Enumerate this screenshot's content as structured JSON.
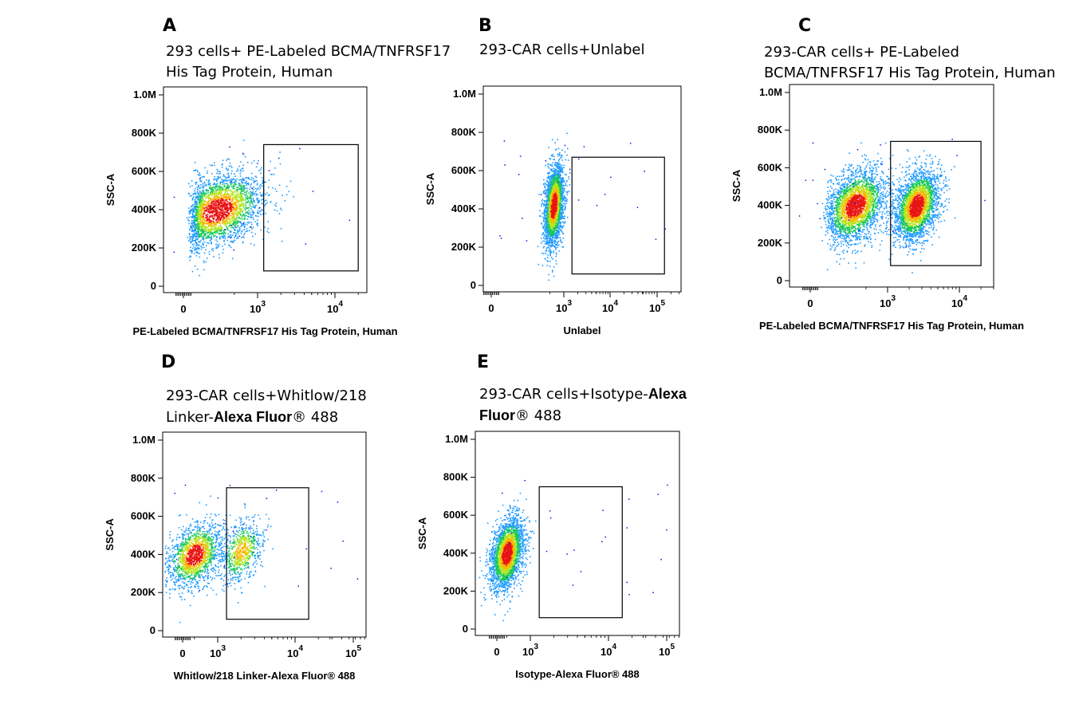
{
  "panels": [
    {
      "letter": "A",
      "title_lines": [
        [
          {
            "text": "293 cells+ PE-Labeled BCMA/TNFRSF17",
            "bold": false
          }
        ],
        [
          {
            "text": "His Tag Protein, Human",
            "bold": false
          }
        ]
      ]
    },
    {
      "letter": "B",
      "title_lines": [
        [
          {
            "text": "293-CAR cells+Unlabel",
            "bold": false
          }
        ]
      ]
    },
    {
      "letter": "C",
      "title_lines": [
        [
          {
            "text": "293-CAR cells+ PE-Labeled",
            "bold": false
          }
        ],
        [
          {
            "text": "BCMA/TNFRSF17 His Tag Protein, Human",
            "bold": false
          }
        ]
      ]
    },
    {
      "letter": "D",
      "title_lines": [
        [
          {
            "text": "293-CAR  cells+Whitlow/218",
            "bold": false
          }
        ],
        [
          {
            "text": "Linker-",
            "bold": false
          },
          {
            "text": "Alexa Fluor",
            "bold": true
          },
          {
            "text": "® 488",
            "bold": false
          }
        ]
      ]
    },
    {
      "letter": "E",
      "title_lines": [
        [
          {
            "text": "293-CAR   cells+Isotype-",
            "bold": false
          },
          {
            "text": "Alexa",
            "bold": true
          }
        ],
        [
          {
            "text": "Fluor",
            "bold": true
          },
          {
            "text": "® 488",
            "bold": false
          }
        ]
      ]
    }
  ],
  "chart_data": [
    {
      "type": "scatter",
      "plot": "flow-cytometry density dot plot",
      "xlabel": "PE-Labeled BCMA/TNFRSF17 His Tag Protein, Human",
      "ylabel": "SSC-A",
      "y_ticks": [
        "0",
        "200K",
        "400K",
        "600K",
        "800K",
        "1.0M"
      ],
      "ylim": [
        0,
        1000000
      ],
      "x_ticks": [
        {
          "base": "0",
          "exp": ""
        },
        {
          "base": "10",
          "exp": "3"
        },
        {
          "base": "10",
          "exp": "4"
        }
      ],
      "x_scale": "biexponential",
      "gate": {
        "x_range": [
          1200,
          20000
        ],
        "y_range": [
          80000,
          740000
        ]
      },
      "populations": [
        {
          "x_center": 300,
          "y_center": 400000,
          "x_spread": 0.85,
          "y_spread": 90000,
          "density": "high"
        }
      ]
    },
    {
      "type": "scatter",
      "plot": "flow-cytometry density dot plot",
      "xlabel": "Unlabel",
      "ylabel": "SSC-A",
      "y_ticks": [
        "0",
        "200K",
        "400K",
        "600K",
        "800K",
        "1.0M"
      ],
      "ylim": [
        0,
        1000000
      ],
      "x_ticks": [
        {
          "base": "0",
          "exp": ""
        },
        {
          "base": "10",
          "exp": "3"
        },
        {
          "base": "10",
          "exp": "4"
        },
        {
          "base": "10",
          "exp": "5"
        }
      ],
      "x_scale": "biexponential",
      "gate": {
        "x_range": [
          1500,
          150000
        ],
        "y_range": [
          60000,
          670000
        ]
      },
      "populations": [
        {
          "x_center": 600,
          "y_center": 420000,
          "x_spread": 0.3,
          "y_spread": 100000,
          "density": "high"
        }
      ]
    },
    {
      "type": "scatter",
      "plot": "flow-cytometry density dot plot",
      "xlabel": "PE-Labeled BCMA/TNFRSF17 His Tag Protein, Human",
      "ylabel": "SSC-A",
      "y_ticks": [
        "0",
        "200K",
        "400K",
        "600K",
        "800K",
        "1.0M"
      ],
      "ylim": [
        0,
        1000000
      ],
      "x_ticks": [
        {
          "base": "0",
          "exp": ""
        },
        {
          "base": "10",
          "exp": "3"
        },
        {
          "base": "10",
          "exp": "4"
        }
      ],
      "x_scale": "biexponential",
      "gate": {
        "x_range": [
          1100,
          20000
        ],
        "y_range": [
          80000,
          740000
        ]
      },
      "populations": [
        {
          "x_center": 350,
          "y_center": 400000,
          "x_spread": 0.6,
          "y_spread": 90000,
          "density": "high"
        },
        {
          "x_center": 2500,
          "y_center": 400000,
          "x_spread": 0.45,
          "y_spread": 90000,
          "density": "high"
        }
      ]
    },
    {
      "type": "scatter",
      "plot": "flow-cytometry density dot plot",
      "xlabel": "Whitlow/218 Linker-Alexa Fluor® 488",
      "ylabel": "SSC-A",
      "y_ticks": [
        "0",
        "200K",
        "400K",
        "600K",
        "800K",
        "1.0M"
      ],
      "ylim": [
        0,
        1000000
      ],
      "x_ticks": [
        {
          "base": "0",
          "exp": ""
        },
        {
          "base": "10",
          "exp": "3"
        },
        {
          "base": "10",
          "exp": "4"
        },
        {
          "base": "10",
          "exp": "5"
        }
      ],
      "x_scale": "biexponential",
      "gate": {
        "x_range": [
          1300,
          15000
        ],
        "y_range": [
          60000,
          750000
        ]
      },
      "populations": [
        {
          "x_center": 500,
          "y_center": 400000,
          "x_spread": 0.5,
          "y_spread": 80000,
          "density": "medium"
        },
        {
          "x_center": 2000,
          "y_center": 420000,
          "x_spread": 0.4,
          "y_spread": 80000,
          "density": "low"
        }
      ]
    },
    {
      "type": "scatter",
      "plot": "flow-cytometry density dot plot",
      "xlabel": "Isotype-Alexa Fluor® 488",
      "ylabel": "SSC-A",
      "y_ticks": [
        "0",
        "200K",
        "400K",
        "600K",
        "800K",
        "1.0M"
      ],
      "ylim": [
        0,
        1000000
      ],
      "x_ticks": [
        {
          "base": "0",
          "exp": ""
        },
        {
          "base": "10",
          "exp": "3"
        },
        {
          "base": "10",
          "exp": "4"
        },
        {
          "base": "10",
          "exp": "5"
        }
      ],
      "x_scale": "biexponential",
      "gate": {
        "x_range": [
          1300,
          15000
        ],
        "y_range": [
          60000,
          750000
        ]
      },
      "populations": [
        {
          "x_center": 500,
          "y_center": 400000,
          "x_spread": 0.3,
          "y_spread": 90000,
          "density": "high"
        }
      ]
    }
  ]
}
